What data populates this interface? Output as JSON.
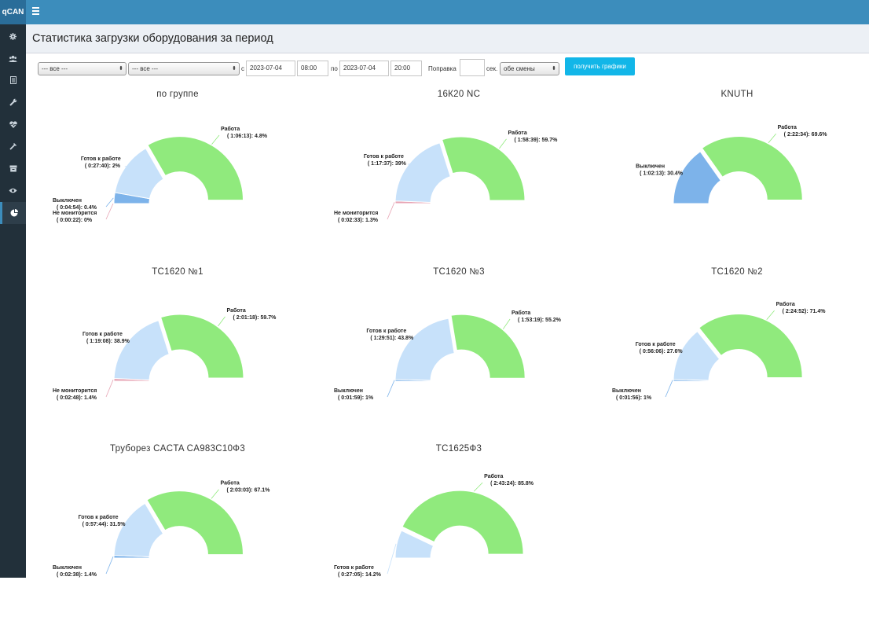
{
  "brand": "qCAN",
  "sidebar": {
    "items": [
      {
        "icon": "gear-icon"
      },
      {
        "icon": "users-icon"
      },
      {
        "icon": "document-icon"
      },
      {
        "icon": "wrench-icon"
      },
      {
        "icon": "heartbeat-icon"
      },
      {
        "icon": "tools-icon"
      },
      {
        "icon": "archive-icon"
      },
      {
        "icon": "eye-icon"
      },
      {
        "icon": "pie-chart-icon"
      }
    ]
  },
  "page": {
    "title": "Статистика загрузки оборудования за период"
  },
  "filters": {
    "group_select": "--- все ---",
    "machine_select": "--- все ---",
    "from_label": "с",
    "from_date": "2023-07-04",
    "from_time": "08:00",
    "to_label": "по",
    "to_date": "2023-07-04",
    "to_time": "20:00",
    "correction_label": "Поправка",
    "correction_value": "",
    "seconds_label": "сек.",
    "shift_select": "обе смены",
    "submit_label": "получить графики"
  },
  "colors": {
    "work": "#90ea7d",
    "ready": "#c7e1fa",
    "off": "#7db3ea",
    "not_monitored": "#e7a4b4",
    "sidebar": "#22303a",
    "topbar": "#3c8dbc",
    "button": "#12b6e8"
  },
  "chart_data": [
    {
      "type": "pie",
      "title": "по группе",
      "slices": [
        {
          "name": "Не мониторится",
          "time": "0:00:22",
          "value": 0,
          "label": "( 0:00:22): 0%"
        },
        {
          "name": "Выключен",
          "time": "0:04:54",
          "value": 0.4,
          "label": "( 0:04:54): 0.4%"
        },
        {
          "name": "Готов к работе",
          "time": "0:27:40",
          "value": 2,
          "label": "( 0:27:40): 2%"
        },
        {
          "name": "Работа",
          "time": "1:06:13",
          "value": 4.8,
          "label": "( 1:06:13): 4.8%"
        }
      ]
    },
    {
      "type": "pie",
      "title": "16К20 NC",
      "slices": [
        {
          "name": "Не мониторится",
          "time": "0:02:33",
          "value": 1.3,
          "label": "( 0:02:33): 1.3%"
        },
        {
          "name": "Готов к работе",
          "time": "1:17:37",
          "value": 39,
          "label": "( 1:17:37): 39%"
        },
        {
          "name": "Работа",
          "time": "1:58:39",
          "value": 59.7,
          "label": "( 1:58:39): 59.7%"
        }
      ]
    },
    {
      "type": "pie",
      "title": "KNUTH",
      "slices": [
        {
          "name": "Выключен",
          "time": "1:02:13",
          "value": 30.4,
          "label": "( 1:02:13): 30.4%"
        },
        {
          "name": "Работа",
          "time": "2:22:34",
          "value": 69.6,
          "label": "( 2:22:34): 69.6%"
        }
      ]
    },
    {
      "type": "pie",
      "title": "TC1620 №1",
      "slices": [
        {
          "name": "Не мониторится",
          "time": "0:02:48",
          "value": 1.4,
          "label": "( 0:02:48): 1.4%"
        },
        {
          "name": "Готов к работе",
          "time": "1:19:08",
          "value": 38.9,
          "label": "( 1:19:08): 38.9%"
        },
        {
          "name": "Работа",
          "time": "2:01:18",
          "value": 59.7,
          "label": "( 2:01:18): 59.7%"
        }
      ]
    },
    {
      "type": "pie",
      "title": "TC1620 №3",
      "slices": [
        {
          "name": "Выключен",
          "time": "0:01:59",
          "value": 1,
          "label": "( 0:01:59): 1%"
        },
        {
          "name": "Готов к работе",
          "time": "1:29:51",
          "value": 43.8,
          "label": "( 1:29:51): 43.8%"
        },
        {
          "name": "Работа",
          "time": "1:53:19",
          "value": 55.2,
          "label": "( 1:53:19): 55.2%"
        }
      ]
    },
    {
      "type": "pie",
      "title": "TC1620 №2",
      "slices": [
        {
          "name": "Выключен",
          "time": "0:01:56",
          "value": 1,
          "label": "( 0:01:56): 1%"
        },
        {
          "name": "Готов к работе",
          "time": "0:56:06",
          "value": 27.6,
          "label": "( 0:56:06): 27.6%"
        },
        {
          "name": "Работа",
          "time": "2:24:52",
          "value": 71.4,
          "label": "( 2:24:52): 71.4%"
        }
      ]
    },
    {
      "type": "pie",
      "title": "Труборез CACTA CA983C10Ф3",
      "slices": [
        {
          "name": "Выключен",
          "time": "0:02:38",
          "value": 1.4,
          "label": "( 0:02:38): 1.4%"
        },
        {
          "name": "Готов к работе",
          "time": "0:57:44",
          "value": 31.5,
          "label": "( 0:57:44): 31.5%"
        },
        {
          "name": "Работа",
          "time": "2:03:03",
          "value": 67.1,
          "label": "( 2:03:03): 67.1%"
        }
      ]
    },
    {
      "type": "pie",
      "title": "TC1625Ф3",
      "slices": [
        {
          "name": "Готов к работе",
          "time": "0:27:05",
          "value": 14.2,
          "label": "( 0:27:05): 14.2%"
        },
        {
          "name": "Работа",
          "time": "2:43:24",
          "value": 85.8,
          "label": "( 2:43:24): 85.8%"
        }
      ]
    }
  ]
}
